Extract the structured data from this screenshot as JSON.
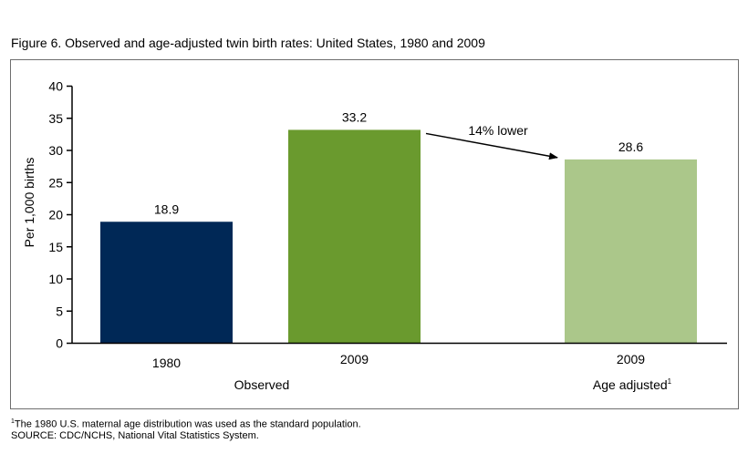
{
  "figure": {
    "title": "Figure 6. Observed and age-adjusted twin birth rates: United States, 1980 and 2009"
  },
  "chart_data": {
    "type": "bar",
    "title": "Figure 6. Observed and age-adjusted twin birth rates: United States, 1980 and 2009",
    "ylabel": "Per 1,000 births",
    "xlabel": "",
    "ylim": [
      0,
      40
    ],
    "yticks": [
      0,
      5,
      10,
      15,
      20,
      25,
      30,
      35,
      40
    ],
    "grid": false,
    "categories": [
      "1980",
      "2009",
      "2009"
    ],
    "values": [
      18.9,
      33.2,
      28.6
    ],
    "value_labels": [
      "18.9",
      "33.2",
      "28.6"
    ],
    "colors": [
      "#002856",
      "#6a9a2e",
      "#abc78a"
    ],
    "groups": [
      {
        "label": "Observed",
        "note": ""
      },
      {
        "label": "Age adjusted",
        "note": "1"
      }
    ],
    "annotation": {
      "text": "14% lower",
      "from_bar": 1,
      "to_bar": 2
    }
  },
  "footnotes": {
    "note_marker": "1",
    "note_text": "The 1980 U.S. maternal age distribution was used as the standard population.",
    "source": "SOURCE: CDC/NCHS, National Vital Statistics System."
  }
}
